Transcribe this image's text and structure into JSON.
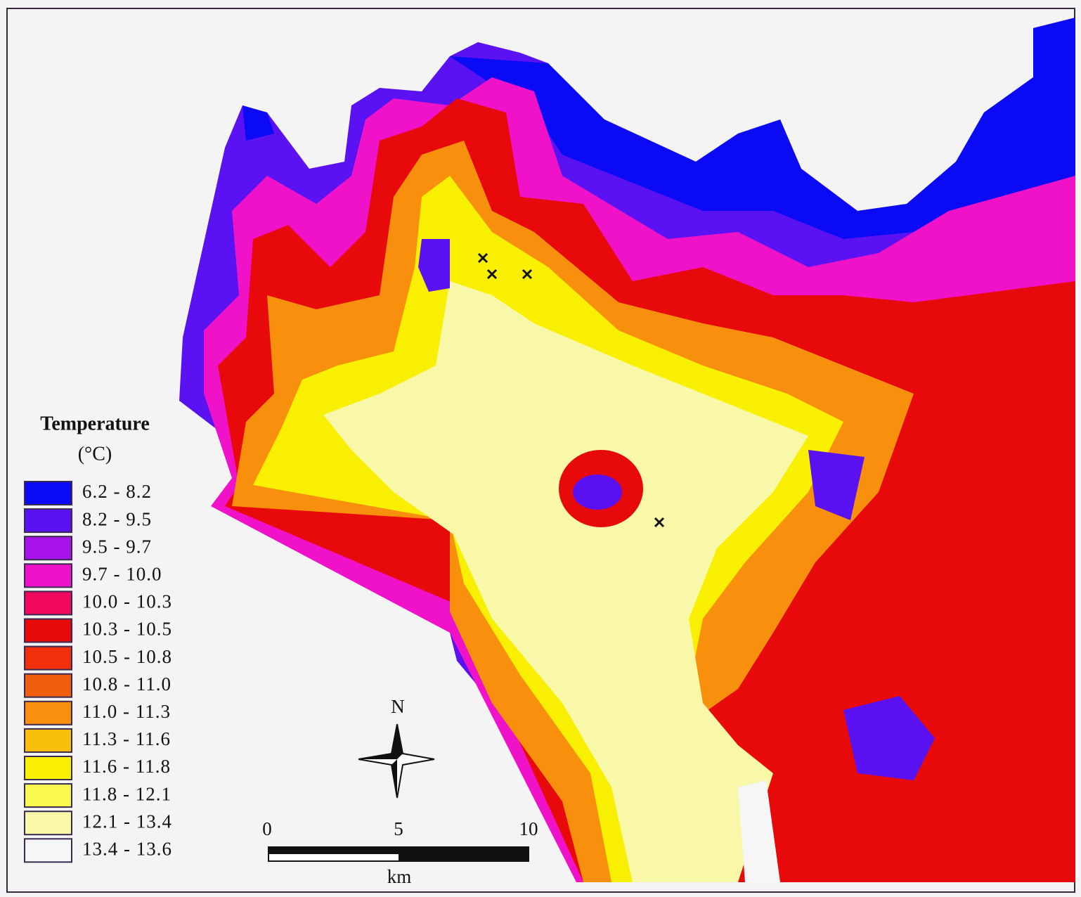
{
  "legend": {
    "title": "Temperature",
    "unit": "(°C)",
    "items": [
      {
        "label": "6.2 - 8.2",
        "color": "#0a0af5"
      },
      {
        "label": "8.2 - 9.5",
        "color": "#5a12f2"
      },
      {
        "label": "9.5 - 9.7",
        "color": "#a612e8"
      },
      {
        "label": "9.7 - 10.0",
        "color": "#f012c8"
      },
      {
        "label": "10.0 - 10.3",
        "color": "#f0085c"
      },
      {
        "label": "10.3 - 10.5",
        "color": "#e80a0a"
      },
      {
        "label": "10.5 - 10.8",
        "color": "#f0300c"
      },
      {
        "label": "10.8 - 11.0",
        "color": "#f0600c"
      },
      {
        "label": "11.0 - 11.3",
        "color": "#f8900e"
      },
      {
        "label": "11.3 - 11.6",
        "color": "#f8c00c"
      },
      {
        "label": "11.6 - 11.8",
        "color": "#f8f000"
      },
      {
        "label": "11.8 - 12.1",
        "color": "#f8f850"
      },
      {
        "label": "12.1 - 13.4",
        "color": "#f8f8a8"
      },
      {
        "label": "13.4 - 13.6",
        "color": "#f6f6f6"
      }
    ]
  },
  "compass": {
    "north": "N"
  },
  "scale_bar": {
    "labels": [
      "0",
      "5",
      "10"
    ],
    "unit": "km"
  }
}
